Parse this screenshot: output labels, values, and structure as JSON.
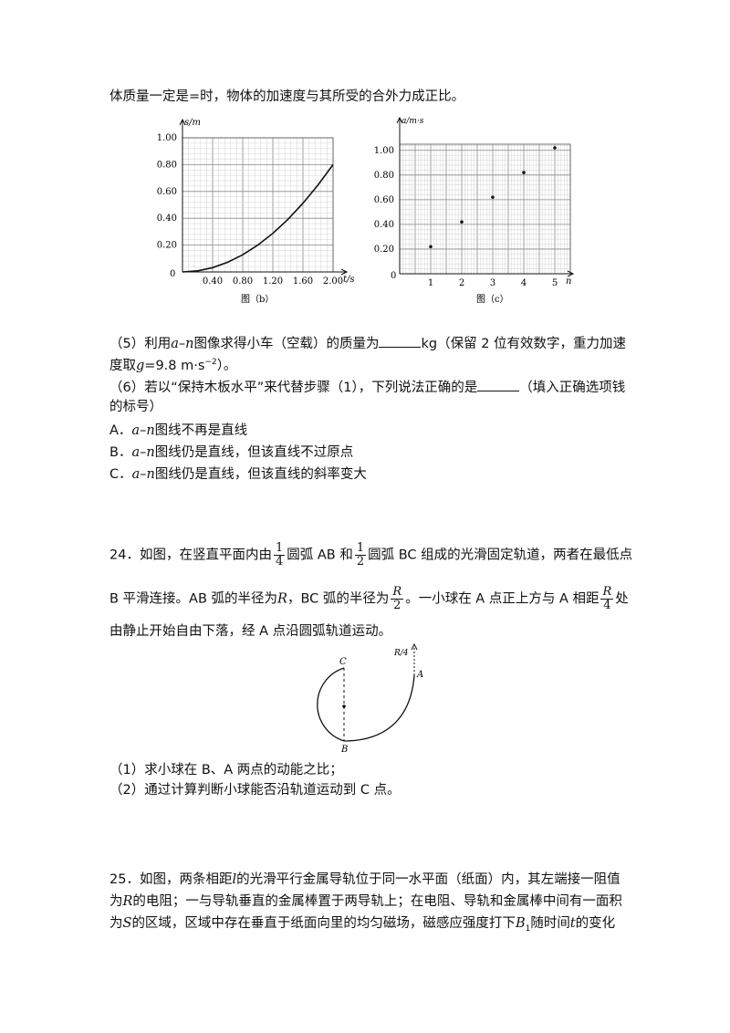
{
  "top_line": "体质量一定是=时，物体的加速度与其所受的合外力成正比。",
  "chart_data": [
    {
      "type": "line",
      "caption": "图（b）",
      "ylabel": "s/m",
      "xlabel": "t/s",
      "origin_label": "0",
      "xlim": [
        0,
        2.0
      ],
      "ylim": [
        0,
        1.0
      ],
      "xticks": [
        "0.40",
        "0.80",
        "1.20",
        "1.60",
        "2.00"
      ],
      "xtick_values": [
        0.4,
        0.8,
        1.2,
        1.6,
        2.0
      ],
      "yticks": [
        "0.20",
        "0.40",
        "0.60",
        "0.80",
        "1.00"
      ],
      "ytick_values": [
        0.2,
        0.4,
        0.6,
        0.8,
        1.0
      ],
      "grid": true,
      "series": [
        {
          "x": [
            0,
            0.2,
            0.4,
            0.6,
            0.8,
            1.0,
            1.2,
            1.4,
            1.6,
            1.8,
            2.0
          ],
          "y": [
            0,
            0.008,
            0.032,
            0.072,
            0.128,
            0.2,
            0.288,
            0.392,
            0.512,
            0.648,
            0.8
          ]
        }
      ]
    },
    {
      "type": "scatter",
      "caption": "图（c）",
      "ylabel": "a/m·s",
      "xlabel": "n",
      "origin_label": "0",
      "xlim": [
        0,
        5.5
      ],
      "ylim": [
        0,
        1.05
      ],
      "xticks": [
        "1",
        "2",
        "3",
        "4",
        "5"
      ],
      "xtick_values": [
        1,
        2,
        3,
        4,
        5
      ],
      "yticks": [
        "0.20",
        "0.40",
        "0.60",
        "0.80",
        "1.00"
      ],
      "ytick_values": [
        0.2,
        0.4,
        0.6,
        0.8,
        1.0
      ],
      "grid": true,
      "series": [
        {
          "x": [
            1,
            2,
            3,
            4,
            5
          ],
          "y": [
            0.22,
            0.42,
            0.62,
            0.82,
            1.02
          ]
        }
      ]
    }
  ],
  "q5": {
    "a": "（5）利用",
    "b": "图像求得小车（空载）的质量为",
    "unit": "kg（保留 2 位有效数字，重力加速",
    "c": "度取",
    "d": "=9.8 m·s",
    "e": "）。"
  },
  "q6": {
    "line1": "（6）若以“保持木板水平”来代替步骤（1），下列说法正确的是",
    "line1b": "（填入正确选项钱",
    "line2": "的标号）"
  },
  "options": [
    {
      "letter": "A．",
      "text": "图线不再是直线"
    },
    {
      "letter": "B．",
      "text": "图线仍是直线，但该直线不过原点"
    },
    {
      "letter": "C．",
      "text": "图线仍是直线，但该直线的斜率变大"
    }
  ],
  "sym": {
    "a": "a",
    "n": "n",
    "dash": "–",
    "g": "g",
    "exp": "−2",
    "R": "R",
    "one": "1",
    "two": "2",
    "four": "4"
  },
  "q24": {
    "s1": "24．如图，在竖直平面内由",
    "s2": "圆弧 AB 和",
    "s3": "圆弧 BC 组成的光滑固定轨道，两者在最低点",
    "s4": "B 平滑连接。AB 弧的半径为",
    "s5": "，BC 弧的半径为",
    "s6": "。一小球在 A 点正上方与 A 相距",
    "s7": "处",
    "s8": "由静止开始自由下落，经 A 点沿圆弧轨道运动。",
    "sub1": "（1）求小球在 B、A 两点的动能之比；",
    "sub2": "（2）通过计算判断小球能否沿轨道运动到 C 点。"
  },
  "diagram": {
    "label_C": "C",
    "label_A": "A",
    "label_B": "B",
    "label_R4": "R/4"
  },
  "q25": {
    "l1a": "25．如图，两条相距",
    "l1b": "l",
    "l1c": "的光滑平行金属导轨位于同一水平面（纸面）内，其左端接一阻值",
    "l2a": "为",
    "l2b": "R",
    "l2c": "的电阻；一与导轨垂直的金属棒置于两导轨上；在电阻、导轨和金属棒中间有一面积",
    "l3a": "为",
    "l3b": "S",
    "l3c": "的区域，区域中存在垂直于纸面向里的均匀磁场，磁感应强度打下",
    "l3d": "B",
    "l3e": "1",
    "l3f": "随时间",
    "l3g": "t",
    "l3h": "的变化"
  }
}
